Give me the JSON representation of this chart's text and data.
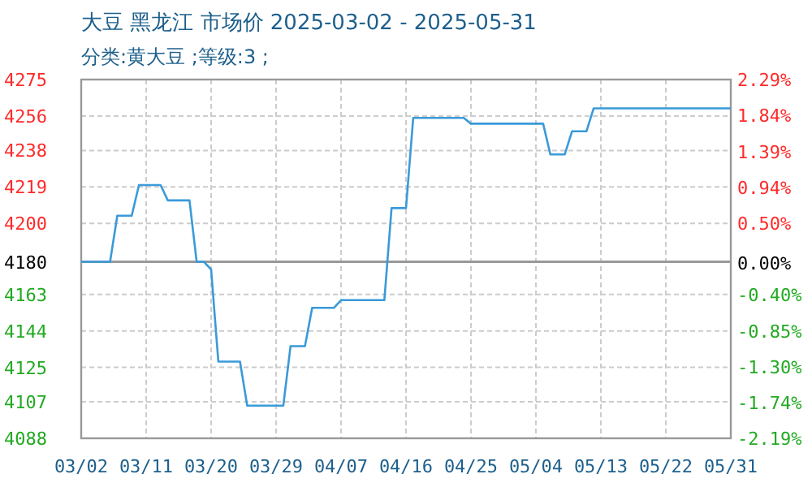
{
  "chart_data": {
    "type": "line",
    "title": "大豆 黑龙江 市场价 2025-03-02 - 2025-05-31",
    "subtitle": "分类:黄大豆 ;等级:3 ;",
    "grid": true,
    "marker": "none",
    "line_style": "solid",
    "xlim": [
      "2025-03-02",
      "2025-05-31"
    ],
    "xticks": [
      {
        "value": "2025-03-02",
        "label": "03/02"
      },
      {
        "value": "2025-03-11",
        "label": "03/11"
      },
      {
        "value": "2025-03-20",
        "label": "03/20"
      },
      {
        "value": "2025-03-29",
        "label": "03/29"
      },
      {
        "value": "2025-04-07",
        "label": "04/07"
      },
      {
        "value": "2025-04-16",
        "label": "04/16"
      },
      {
        "value": "2025-04-25",
        "label": "04/25"
      },
      {
        "value": "2025-05-04",
        "label": "05/04"
      },
      {
        "value": "2025-05-13",
        "label": "05/13"
      },
      {
        "value": "2025-05-22",
        "label": "05/22"
      },
      {
        "value": "2025-05-31",
        "label": "05/31"
      }
    ],
    "ylim": [
      4088,
      4275
    ],
    "yticks": [
      4088,
      4107,
      4125,
      4144,
      4163,
      4180,
      4200,
      4219,
      4238,
      4256,
      4275
    ],
    "y2lim": [
      -2.19,
      2.29
    ],
    "y2ticks": [
      {
        "value": -2.19,
        "label": "-2.19%"
      },
      {
        "value": -1.74,
        "label": "-1.74%"
      },
      {
        "value": -1.3,
        "label": "-1.30%"
      },
      {
        "value": -0.85,
        "label": "-0.85%"
      },
      {
        "value": -0.4,
        "label": "-0.40%"
      },
      {
        "value": 0,
        "label": "0.00%"
      },
      {
        "value": 0.5,
        "label": "0.50%"
      },
      {
        "value": 0.94,
        "label": "0.94%"
      },
      {
        "value": 1.39,
        "label": "1.39%"
      },
      {
        "value": 1.84,
        "label": "1.84%"
      },
      {
        "value": 2.29,
        "label": "2.29%"
      }
    ],
    "ref_lines": [
      {
        "axis": "y",
        "value": 4180,
        "color": "#999999"
      }
    ],
    "x": [
      "2025-03-02",
      "2025-03-06",
      "2025-03-07",
      "2025-03-09",
      "2025-03-10",
      "2025-03-13",
      "2025-03-14",
      "2025-03-17",
      "2025-03-18",
      "2025-03-19",
      "2025-03-20",
      "2025-03-21",
      "2025-03-24",
      "2025-03-25",
      "2025-03-30",
      "2025-03-31",
      "2025-04-02",
      "2025-04-03",
      "2025-04-06",
      "2025-04-07",
      "2025-04-13",
      "2025-04-14",
      "2025-04-16",
      "2025-04-17",
      "2025-04-24",
      "2025-04-25",
      "2025-05-05",
      "2025-05-06",
      "2025-05-08",
      "2025-05-09",
      "2025-05-11",
      "2025-05-12",
      "2025-05-31"
    ],
    "series": [
      {
        "color": "#3a9ad9",
        "values": [
          4180,
          4180,
          4204,
          4204,
          4220,
          4220,
          4212,
          4212,
          4180,
          4180,
          4176,
          4128,
          4128,
          4105,
          4105,
          4136,
          4136,
          4156,
          4156,
          4160,
          4160,
          4208,
          4208,
          4255,
          4255,
          4252,
          4252,
          4236,
          4236,
          4248,
          4248,
          4260,
          4260
        ]
      }
    ]
  }
}
